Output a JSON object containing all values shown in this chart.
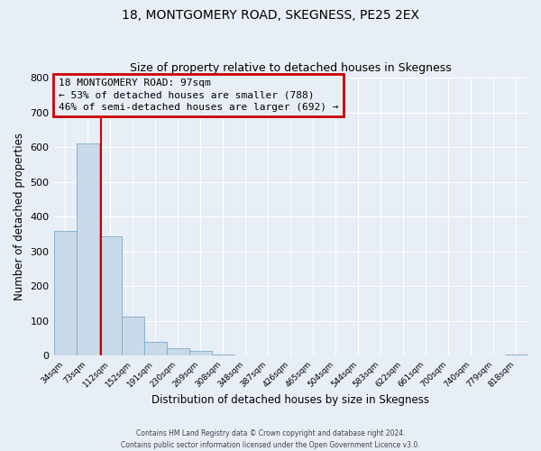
{
  "title": "18, MONTGOMERY ROAD, SKEGNESS, PE25 2EX",
  "subtitle": "Size of property relative to detached houses in Skegness",
  "xlabel": "Distribution of detached houses by size in Skegness",
  "ylabel": "Number of detached properties",
  "xlim_labels": [
    "34sqm",
    "73sqm",
    "112sqm",
    "152sqm",
    "191sqm",
    "230sqm",
    "269sqm",
    "308sqm",
    "348sqm",
    "387sqm",
    "426sqm",
    "465sqm",
    "504sqm",
    "544sqm",
    "583sqm",
    "622sqm",
    "661sqm",
    "700sqm",
    "740sqm",
    "779sqm",
    "818sqm"
  ],
  "bar_heights": [
    358,
    611,
    343,
    114,
    40,
    22,
    13,
    5,
    0,
    0,
    2,
    0,
    0,
    0,
    0,
    0,
    0,
    0,
    0,
    0,
    3
  ],
  "bar_color": "#c8daea",
  "bar_edge_color": "#7aaac8",
  "ylim": [
    0,
    800
  ],
  "yticks": [
    0,
    100,
    200,
    300,
    400,
    500,
    600,
    700,
    800
  ],
  "annotation_title": "18 MONTGOMERY ROAD: 97sqm",
  "annotation_line1": "← 53% of detached houses are smaller (788)",
  "annotation_line2": "46% of semi-detached houses are larger (692) →",
  "annotation_box_color": "#cc0000",
  "footer_line1": "Contains HM Land Registry data © Crown copyright and database right 2024.",
  "footer_line2": "Contains public sector information licensed under the Open Government Licence v3.0.",
  "background_color": "#e8eef5",
  "grid_color": "#ffffff",
  "red_line_x": 1.615
}
